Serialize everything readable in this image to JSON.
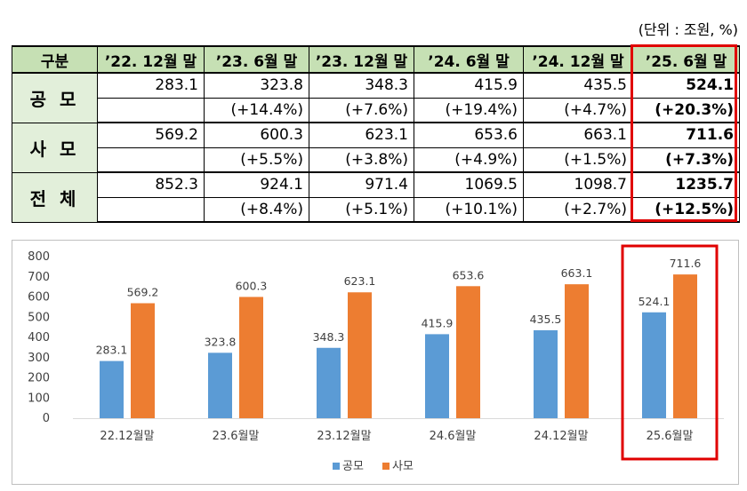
{
  "unit_note": "(단위 : 조원, %)",
  "table": {
    "header": [
      "구분",
      "’22. 12월 말",
      "’23. 6월  말",
      "’23. 12월 말",
      "’24. 6월  말",
      "’24. 12월 말",
      "’25. 6월  말"
    ],
    "rows": [
      {
        "label": "공 모",
        "values": [
          "283.1",
          "323.8",
          "348.3",
          "415.9",
          "435.5",
          "524.1"
        ],
        "changes": [
          "",
          "(+14.4%)",
          "(+7.6%)",
          "(+19.4%)",
          "(+4.7%)",
          "(+20.3%)"
        ]
      },
      {
        "label": "사 모",
        "values": [
          "569.2",
          "600.3",
          "623.1",
          "653.6",
          "663.1",
          "711.6"
        ],
        "changes": [
          "",
          "(+5.5%)",
          "(+3.8%)",
          "(+4.9%)",
          "(+1.5%)",
          "(+7.3%)"
        ]
      },
      {
        "label": "전 체",
        "values": [
          "852.3",
          "924.1",
          "971.4",
          "1069.5",
          "1098.7",
          "1235.7"
        ],
        "changes": [
          "",
          "(+8.4%)",
          "(+5.1%)",
          "(+10.1%)",
          "(+2.7%)",
          "(+12.5%)"
        ]
      }
    ]
  },
  "colors": {
    "series1": "#5b9bd5",
    "series2": "#ed7d31",
    "highlight": "#e00000",
    "header_bg": "#c6e0b4",
    "rowhead_bg": "#e2efda"
  },
  "chart_data": {
    "type": "bar",
    "categories": [
      "22.12월말",
      "23.6월말",
      "23.12월말",
      "24.6월말",
      "24.12월말",
      "25.6월말"
    ],
    "series": [
      {
        "name": "공모",
        "values": [
          283.1,
          323.8,
          348.3,
          415.9,
          435.5,
          524.1
        ]
      },
      {
        "name": "사모",
        "values": [
          569.2,
          600.3,
          623.1,
          653.6,
          663.1,
          711.6
        ]
      }
    ],
    "ylim": [
      0,
      800
    ],
    "yticks": [
      0,
      100,
      200,
      300,
      400,
      500,
      600,
      700,
      800
    ],
    "grid": false,
    "legend": "bottom",
    "data_labels": true,
    "highlight_category": "25.6월말"
  }
}
